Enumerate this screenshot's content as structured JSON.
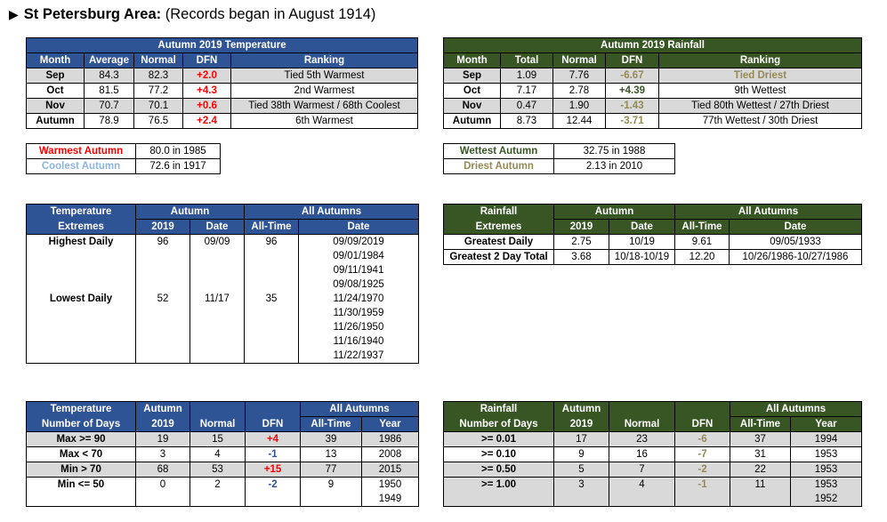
{
  "heading": {
    "area": "St Petersburg Area:",
    "note": "(Records began in August 1914)"
  },
  "autumn_temp": {
    "title": "Autumn 2019 Temperature",
    "headers": [
      "Month",
      "Average",
      "Normal",
      "DFN",
      "Ranking"
    ],
    "rows": [
      {
        "month": "Sep",
        "average": "84.3",
        "normal": "82.3",
        "dfn": "+2.0",
        "ranking": "Tied 5th Warmest"
      },
      {
        "month": "Oct",
        "average": "81.5",
        "normal": "77.2",
        "dfn": "+4.3",
        "ranking": "2nd Warmest"
      },
      {
        "month": "Nov",
        "average": "70.7",
        "normal": "70.1",
        "dfn": "+0.6",
        "ranking": "Tied 38th Warmest / 68th Coolest"
      },
      {
        "month": "Autumn",
        "average": "78.9",
        "normal": "76.5",
        "dfn": "+2.4",
        "ranking": "6th Warmest"
      }
    ]
  },
  "autumn_rain": {
    "title": "Autumn 2019 Rainfall",
    "headers": [
      "Month",
      "Total",
      "Normal",
      "DFN",
      "Ranking"
    ],
    "rows": [
      {
        "month": "Sep",
        "total": "1.09",
        "normal": "7.76",
        "dfn": "-6.67",
        "ranking": "Tied Driest"
      },
      {
        "month": "Oct",
        "total": "7.17",
        "normal": "2.78",
        "dfn": "+4.39",
        "ranking": "9th Wettest"
      },
      {
        "month": "Nov",
        "total": "0.47",
        "normal": "1.90",
        "dfn": "-1.43",
        "ranking": "Tied 80th Wettest / 27th Driest"
      },
      {
        "month": "Autumn",
        "total": "8.73",
        "normal": "12.44",
        "dfn": "-3.71",
        "ranking": "77th Wettest / 30th Driest"
      }
    ]
  },
  "temp_records": {
    "warmest_label": "Warmest Autumn",
    "warmest_value": "80.0 in 1985",
    "coolest_label": "Coolest Autumn",
    "coolest_value": "72.6 in 1917"
  },
  "rain_records": {
    "wettest_label": "Wettest Autumn",
    "wettest_value": "32.75 in 1988",
    "driest_label": "Driest Autumn",
    "driest_value": "2.13 in 2010"
  },
  "temp_extremes": {
    "h1": "Temperature",
    "h2": "Extremes",
    "autumn": "Autumn",
    "all_autumns": "All Autumns",
    "sub": [
      "2019",
      "Date",
      "All-Time",
      "Date"
    ],
    "highest": {
      "label": "Highest Daily",
      "value": "96",
      "date": "09/09",
      "alltime": "96",
      "dates": [
        "09/09/2019",
        "09/01/1984",
        "09/11/1941",
        "09/08/1925"
      ]
    },
    "lowest": {
      "label": "Lowest Daily",
      "value": "52",
      "date": "11/17",
      "alltime": "35",
      "dates": [
        "11/24/1970",
        "11/30/1959",
        "11/26/1950",
        "11/16/1940",
        "11/22/1937"
      ]
    }
  },
  "rain_extremes": {
    "h1": "Rainfall",
    "h2": "Extremes",
    "autumn": "Autumn",
    "all_autumns": "All Autumns",
    "sub": [
      "2019",
      "Date",
      "All-Time",
      "Date"
    ],
    "rows": [
      {
        "label": "Greatest Daily",
        "value": "2.75",
        "date": "10/19",
        "alltime": "9.61",
        "alldate": "09/05/1933"
      },
      {
        "label": "Greatest 2 Day Total",
        "value": "3.68",
        "date": "10/18-10/19",
        "alltime": "12.20",
        "alldate": "10/26/1986-10/27/1986"
      }
    ]
  },
  "temp_days": {
    "h1": "Temperature",
    "h2": "Number of Days",
    "autumn": "Autumn",
    "all_autumns": "All Autumns",
    "sub": [
      "2019",
      "Normal",
      "DFN",
      "All-Time",
      "Year"
    ],
    "rows": [
      {
        "label": "Max >= 90",
        "v2019": "19",
        "normal": "15",
        "dfn": "+4",
        "alltime": "39",
        "year": "1986"
      },
      {
        "label": "Max < 70",
        "v2019": "3",
        "normal": "4",
        "dfn": "-1",
        "alltime": "13",
        "year": "2008"
      },
      {
        "label": "Min > 70",
        "v2019": "68",
        "normal": "53",
        "dfn": "+15",
        "alltime": "77",
        "year": "2015"
      },
      {
        "label": "Min <= 50",
        "v2019": "0",
        "normal": "2",
        "dfn": "-2",
        "alltime": "9",
        "year": "1950",
        "year2": "1949"
      }
    ]
  },
  "rain_days": {
    "h1": "Rainfall",
    "h2": "Number of Days",
    "autumn": "Autumn",
    "all_autumns": "All Autumns",
    "sub": [
      "2019",
      "Normal",
      "DFN",
      "All-Time",
      "Year"
    ],
    "rows": [
      {
        "label": ">= 0.01",
        "v2019": "17",
        "normal": "23",
        "dfn": "-6",
        "alltime": "37",
        "year": "1994"
      },
      {
        "label": ">= 0.10",
        "v2019": "9",
        "normal": "16",
        "dfn": "-7",
        "alltime": "31",
        "year": "1953"
      },
      {
        "label": ">= 0.50",
        "v2019": "5",
        "normal": "7",
        "dfn": "-2",
        "alltime": "22",
        "year": "1953"
      },
      {
        "label": ">= 1.00",
        "v2019": "3",
        "normal": "4",
        "dfn": "-1",
        "alltime": "11",
        "year": "1953",
        "year2": "1952"
      }
    ]
  },
  "colors": {
    "temp_header": "#2f5496",
    "rain_header": "#375623",
    "warm_red": "#ff0000",
    "cool_blue": "#8db4e2",
    "dry_tan": "#948a54",
    "row_gray": "#d9d9d9"
  }
}
